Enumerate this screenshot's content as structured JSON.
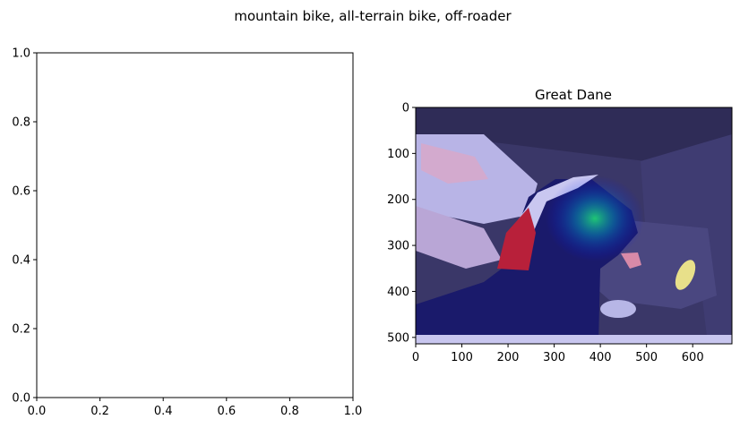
{
  "figure": {
    "suptitle": "mountain bike, all-terrain bike, off-roader"
  },
  "chart_data": [
    {
      "type": "scatter",
      "title": "",
      "xlabel": "",
      "ylabel": "",
      "xlim": [
        0.0,
        1.0
      ],
      "ylim": [
        0.0,
        1.0
      ],
      "x_ticks": [
        "0.0",
        "0.2",
        "0.4",
        "0.6",
        "0.8",
        "1.0"
      ],
      "y_ticks": [
        "0.0",
        "0.2",
        "0.4",
        "0.6",
        "0.8",
        "1.0"
      ],
      "series": [],
      "grid": false
    },
    {
      "type": "heatmap",
      "title": "Great Dane",
      "xlabel": "",
      "ylabel": "",
      "xlim": [
        0,
        685
      ],
      "ylim": [
        514,
        0
      ],
      "x_ticks": [
        "0",
        "100",
        "200",
        "300",
        "400",
        "500",
        "600"
      ],
      "y_ticks": [
        "0",
        "100",
        "200",
        "300",
        "400",
        "500"
      ],
      "overlay_colormap": "jet",
      "overlay_peak": [
        350,
        240
      ],
      "grid": false
    }
  ]
}
